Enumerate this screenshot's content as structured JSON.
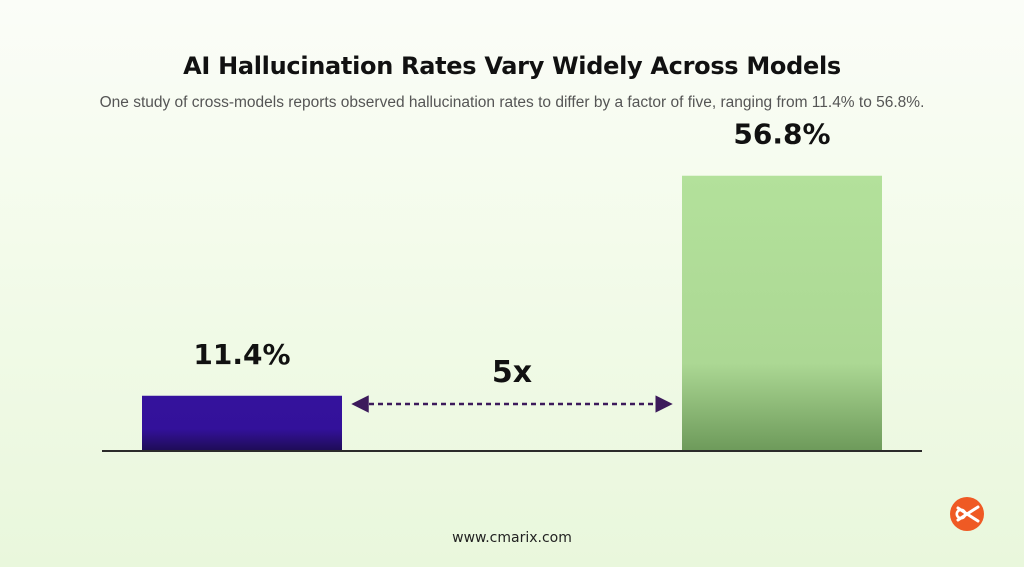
{
  "header": {
    "title": "AI Hallucination Rates Vary Widely Across Models",
    "subtitle": "One study of cross-models reports observed hallucination rates to differ by a factor of five, ranging from 11.4% to 56.8%."
  },
  "chart_data": {
    "type": "bar",
    "categories": [
      "",
      ""
    ],
    "values": [
      11.4,
      56.8
    ],
    "value_labels": [
      "11.4%",
      "56.8%"
    ],
    "colors": [
      "#34129c",
      "#b2e09a"
    ],
    "ylim": [
      0,
      65
    ],
    "grid": false,
    "annotation": {
      "label": "5x",
      "arrow": "double-headed dashed",
      "color": "#3c1a5b"
    }
  },
  "footer": {
    "website": "www.cmarix.com"
  },
  "logo": {
    "icon": "cmarix-logo-icon",
    "color": "#ef5a24"
  }
}
